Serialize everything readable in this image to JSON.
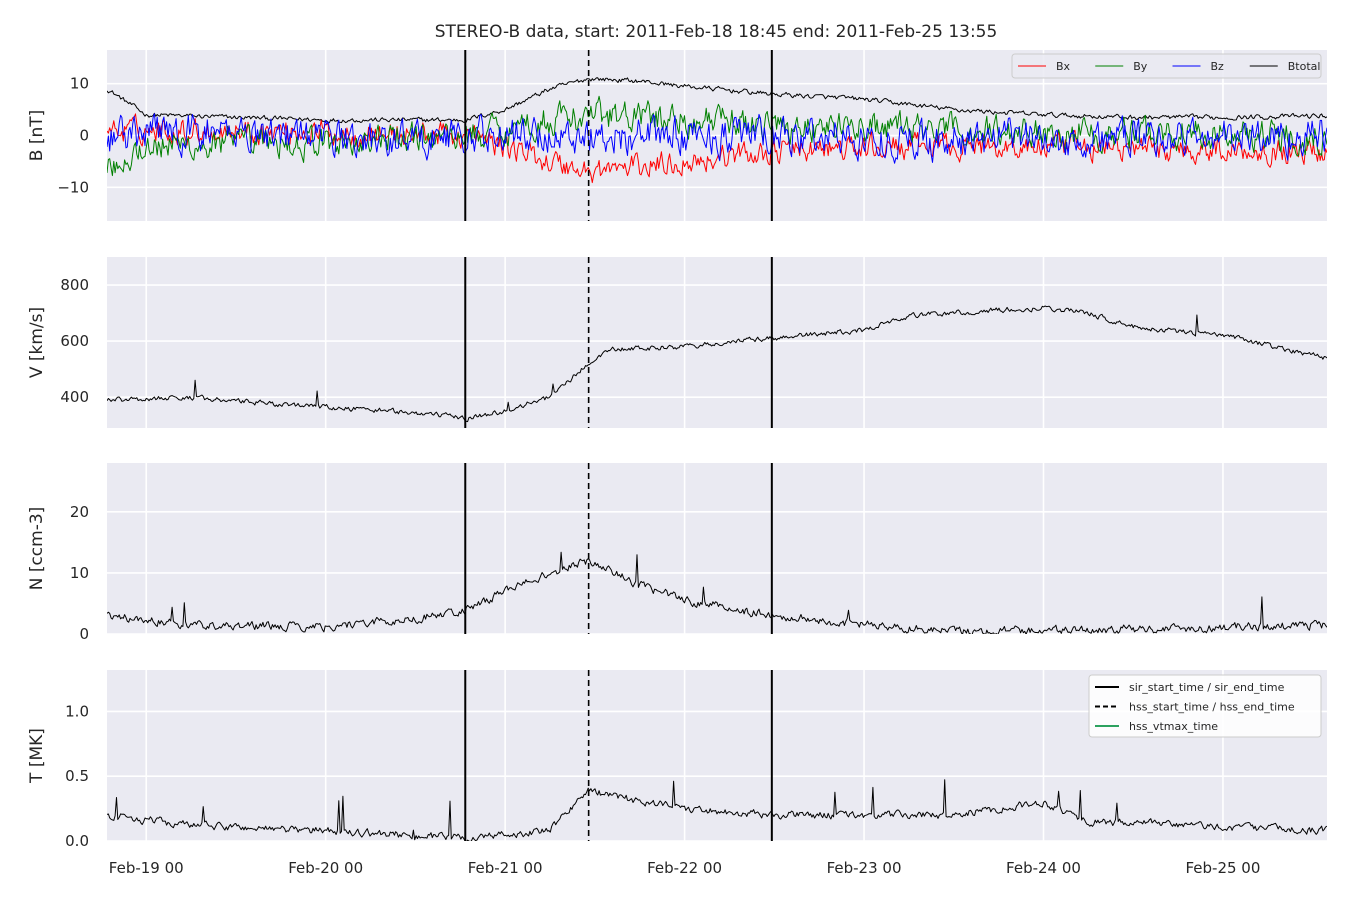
{
  "chart_data": {
    "type": "line",
    "title": "STEREO-B data, start: 2011-Feb-18 18:45  end: 2011-Feb-25 13:55",
    "x_axis": {
      "xlim": [
        "2011-02-18 18:45",
        "2011-02-25 13:55"
      ],
      "tick_labels": [
        "Feb-19 00",
        "Feb-20 00",
        "Feb-21 00",
        "Feb-22 00",
        "Feb-23 00",
        "Feb-24 00",
        "Feb-25 00"
      ],
      "tick_times": [
        "2011-02-19 00:00",
        "2011-02-20 00:00",
        "2011-02-21 00:00",
        "2011-02-22 00:00",
        "2011-02-23 00:00",
        "2011-02-24 00:00",
        "2011-02-25 00:00"
      ]
    },
    "event_markers": [
      {
        "time": "2011-02-20 18:40",
        "style": "solid",
        "kind": "sir_start_time"
      },
      {
        "time": "2011-02-21 11:10",
        "style": "dashed",
        "kind": "hss_start_time"
      },
      {
        "time": "2011-02-22 11:40",
        "style": "solid",
        "kind": "sir_end_time"
      }
    ],
    "grid": true,
    "background": "#eaeaf2",
    "panels": [
      {
        "ylabel": "B [nT]",
        "ylim": [
          -16.5,
          16.5
        ],
        "yticks": [
          -10,
          0,
          10
        ],
        "ytick_labels": [
          "−10",
          "0",
          "10"
        ],
        "legend": {
          "placement": "top-right",
          "layout": "horizontal",
          "entries": [
            "Bx",
            "By",
            "Bz",
            "Btotal"
          ]
        },
        "series": [
          {
            "name": "Btotal",
            "color": "#000000",
            "noise": 0.4,
            "spikes": 0,
            "points": [
              [
                "2011-02-18 18:45",
                9
              ],
              [
                "2011-02-19 00:00",
                4
              ],
              [
                "2011-02-19 12:00",
                3.5
              ],
              [
                "2011-02-20 00:00",
                3
              ],
              [
                "2011-02-20 12:00",
                3
              ],
              [
                "2011-02-20 18:40",
                3
              ],
              [
                "2011-02-21 00:00",
                5
              ],
              [
                "2011-02-21 06:00",
                9
              ],
              [
                "2011-02-21 11:10",
                11
              ],
              [
                "2011-02-21 18:00",
                10.5
              ],
              [
                "2011-02-22 00:00",
                9.5
              ],
              [
                "2011-02-22 11:40",
                8
              ],
              [
                "2011-02-23 00:00",
                7
              ],
              [
                "2011-02-23 12:00",
                5
              ],
              [
                "2011-02-24 00:00",
                4
              ],
              [
                "2011-02-24 12:00",
                3.5
              ],
              [
                "2011-02-25 00:00",
                3.5
              ],
              [
                "2011-02-25 13:55",
                3.8
              ]
            ]
          },
          {
            "name": "Bx",
            "color": "#ff0000",
            "noise": 2.0,
            "spikes": 0,
            "points": [
              [
                "2011-02-18 18:45",
                1
              ],
              [
                "2011-02-19 12:00",
                1
              ],
              [
                "2011-02-20 18:40",
                0
              ],
              [
                "2011-02-21 00:00",
                -2
              ],
              [
                "2011-02-21 06:00",
                -5
              ],
              [
                "2011-02-21 11:10",
                -7
              ],
              [
                "2011-02-22 00:00",
                -5
              ],
              [
                "2011-02-22 11:40",
                -3
              ],
              [
                "2011-02-23 12:00",
                -2
              ],
              [
                "2011-02-25 13:55",
                -3
              ]
            ]
          },
          {
            "name": "By",
            "color": "#008000",
            "noise": 2.5,
            "spikes": 0,
            "points": [
              [
                "2011-02-18 18:45",
                -6
              ],
              [
                "2011-02-19 00:00",
                -2
              ],
              [
                "2011-02-20 00:00",
                -1.5
              ],
              [
                "2011-02-20 18:40",
                0
              ],
              [
                "2011-02-21 06:00",
                3
              ],
              [
                "2011-02-21 11:10",
                4
              ],
              [
                "2011-02-22 00:00",
                3
              ],
              [
                "2011-02-22 11:40",
                2
              ],
              [
                "2011-02-23 12:00",
                1
              ],
              [
                "2011-02-25 13:55",
                0
              ]
            ]
          },
          {
            "name": "Bz",
            "color": "#0000ff",
            "noise": 3.0,
            "spikes": 0,
            "points": [
              [
                "2011-02-18 18:45",
                0
              ],
              [
                "2011-02-19 12:00",
                1
              ],
              [
                "2011-02-20 06:00",
                -1
              ],
              [
                "2011-02-20 18:40",
                0
              ],
              [
                "2011-02-21 11:10",
                0
              ],
              [
                "2011-02-22 11:40",
                0
              ],
              [
                "2011-02-23 12:00",
                -1
              ],
              [
                "2011-02-25 13:55",
                0
              ]
            ]
          }
        ]
      },
      {
        "ylabel": "V [km/s]",
        "ylim": [
          290,
          900
        ],
        "yticks": [
          400,
          600,
          800
        ],
        "ytick_labels": [
          "400",
          "600",
          "800"
        ],
        "series": [
          {
            "name": "V",
            "color": "#000000",
            "noise": 8,
            "spikes": 12,
            "points": [
              [
                "2011-02-18 18:45",
                390
              ],
              [
                "2011-02-19 06:00",
                400
              ],
              [
                "2011-02-19 12:00",
                385
              ],
              [
                "2011-02-20 00:00",
                365
              ],
              [
                "2011-02-20 12:00",
                345
              ],
              [
                "2011-02-20 18:40",
                325
              ],
              [
                "2011-02-21 00:00",
                350
              ],
              [
                "2011-02-21 06:00",
                400
              ],
              [
                "2011-02-21 11:10",
                520
              ],
              [
                "2011-02-21 14:00",
                570
              ],
              [
                "2011-02-22 00:00",
                580
              ],
              [
                "2011-02-22 11:40",
                610
              ],
              [
                "2011-02-23 00:00",
                640
              ],
              [
                "2011-02-23 06:00",
                690
              ],
              [
                "2011-02-24 00:00",
                720
              ],
              [
                "2011-02-24 06:00",
                700
              ],
              [
                "2011-02-24 12:00",
                650
              ],
              [
                "2011-02-25 00:00",
                620
              ],
              [
                "2011-02-25 13:55",
                540
              ]
            ]
          }
        ]
      },
      {
        "ylabel": "N [ccm-3]",
        "ylim": [
          0,
          28
        ],
        "yticks": [
          0,
          10,
          20
        ],
        "ytick_labels": [
          "0",
          "10",
          "20"
        ],
        "series": [
          {
            "name": "N",
            "color": "#000000",
            "noise": 0.6,
            "spikes": 8,
            "points": [
              [
                "2011-02-18 18:45",
                3
              ],
              [
                "2011-02-19 06:00",
                1.5
              ],
              [
                "2011-02-20 00:00",
                1.2
              ],
              [
                "2011-02-20 12:00",
                2.5
              ],
              [
                "2011-02-20 18:40",
                4
              ],
              [
                "2011-02-21 00:00",
                7
              ],
              [
                "2011-02-21 06:00",
                10
              ],
              [
                "2011-02-21 11:10",
                12
              ],
              [
                "2011-02-21 18:00",
                8
              ],
              [
                "2011-02-22 00:00",
                5.5
              ],
              [
                "2011-02-22 11:40",
                3
              ],
              [
                "2011-02-23 00:00",
                1.5
              ],
              [
                "2011-02-23 12:00",
                0.5
              ],
              [
                "2011-02-24 12:00",
                0.8
              ],
              [
                "2011-02-25 13:55",
                1.5
              ]
            ]
          }
        ]
      },
      {
        "ylabel": "T [MK]",
        "ylim": [
          0,
          1.32
        ],
        "yticks": [
          0.0,
          0.5,
          1.0
        ],
        "ytick_labels": [
          "0.0",
          "0.5",
          "1.0"
        ],
        "legend": {
          "placement": "top-right",
          "layout": "vertical",
          "entries": [
            {
              "label": "sir_start_time / sir_end_time",
              "color": "#000000",
              "style": "solid"
            },
            {
              "label": "hss_start_time / hss_end_time",
              "color": "#000000",
              "style": "dashed"
            },
            {
              "label": "hss_vtmax_time",
              "color": "#2ca25f",
              "style": "solid"
            }
          ]
        },
        "series": [
          {
            "name": "T",
            "color": "#000000",
            "noise": 0.025,
            "spikes": 18,
            "points": [
              [
                "2011-02-18 18:45",
                0.2
              ],
              [
                "2011-02-19 06:00",
                0.12
              ],
              [
                "2011-02-20 00:00",
                0.08
              ],
              [
                "2011-02-20 18:40",
                0.02
              ],
              [
                "2011-02-21 06:00",
                0.08
              ],
              [
                "2011-02-21 11:10",
                0.4
              ],
              [
                "2011-02-21 14:00",
                0.35
              ],
              [
                "2011-02-22 00:00",
                0.25
              ],
              [
                "2011-02-22 11:40",
                0.2
              ],
              [
                "2011-02-23 12:00",
                0.2
              ],
              [
                "2011-02-24 00:00",
                0.3
              ],
              [
                "2011-02-24 06:00",
                0.15
              ],
              [
                "2011-02-25 13:55",
                0.08
              ]
            ]
          }
        ]
      }
    ]
  }
}
